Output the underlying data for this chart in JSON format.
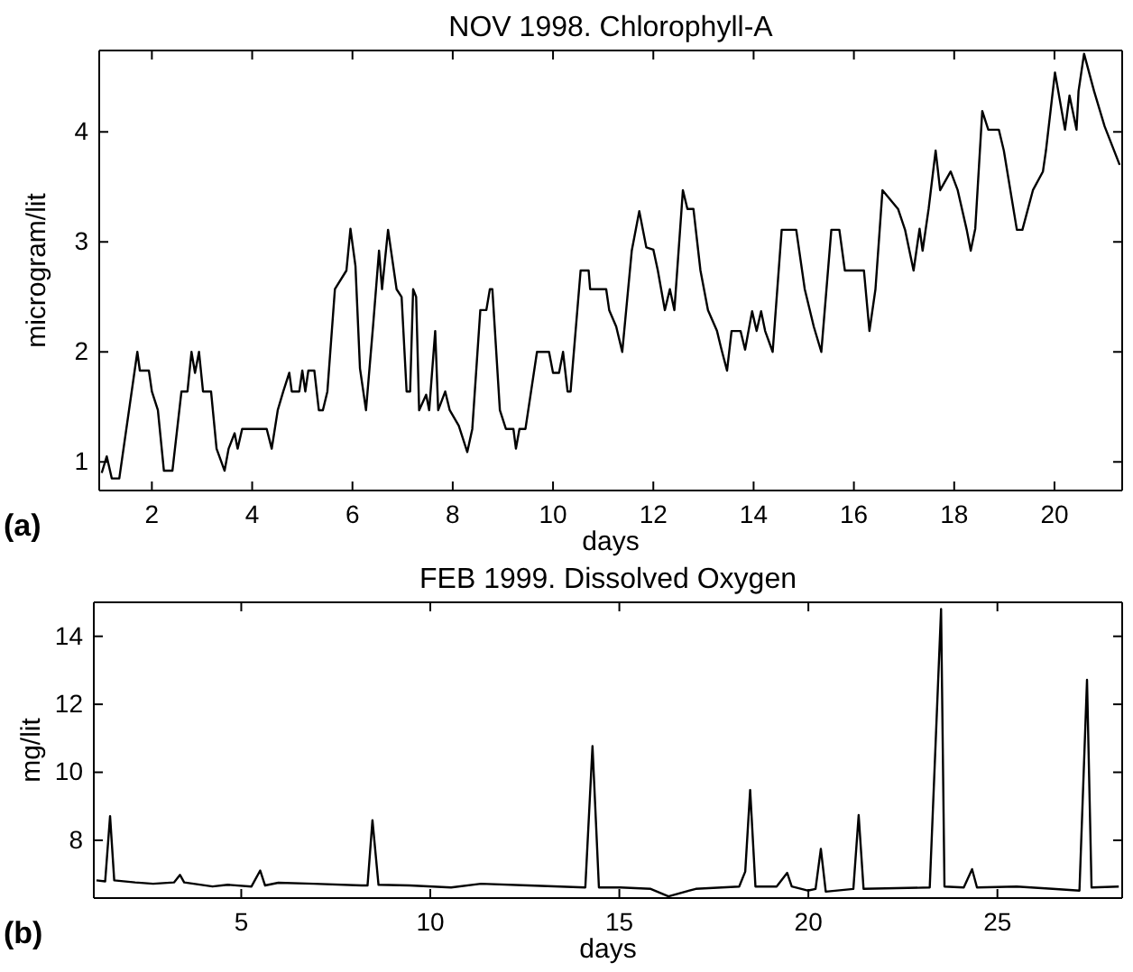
{
  "chart_data": [
    {
      "type": "line",
      "title": "NOV 1998. Chlorophyll-A",
      "xlabel": "days",
      "ylabel": "microgram/lit",
      "annotations": [
        "(a)"
      ],
      "xlim": [
        0.95,
        21.35
      ],
      "xticks": [
        2,
        4,
        6,
        8,
        10,
        12,
        14,
        16,
        18,
        20
      ],
      "ylim": [
        0.74,
        4.74
      ],
      "yticks": [
        1,
        2,
        3,
        4
      ],
      "grid": false,
      "marker": "none",
      "line_style": "solid",
      "series": [
        {
          "color": "#000000",
          "x": [
            1.0,
            1.1,
            1.2,
            1.35,
            1.71,
            1.76,
            1.94,
            2.0,
            2.12,
            2.24,
            2.41,
            2.59,
            2.71,
            2.79,
            2.86,
            2.94,
            3.02,
            3.18,
            3.29,
            3.45,
            3.53,
            3.65,
            3.71,
            3.8,
            4.29,
            4.39,
            4.51,
            4.62,
            4.74,
            4.79,
            4.94,
            5.0,
            5.06,
            5.12,
            5.24,
            5.33,
            5.41,
            5.5,
            5.65,
            5.88,
            5.96,
            6.06,
            6.15,
            6.27,
            6.41,
            6.53,
            6.59,
            6.71,
            6.88,
            6.98,
            7.08,
            7.15,
            7.21,
            7.27,
            7.33,
            7.47,
            7.53,
            7.65,
            7.71,
            7.85,
            7.94,
            8.12,
            8.29,
            8.39,
            8.55,
            8.67,
            8.74,
            8.79,
            8.94,
            9.06,
            9.21,
            9.26,
            9.33,
            9.45,
            9.68,
            9.92,
            10.0,
            10.12,
            10.2,
            10.29,
            10.35,
            10.55,
            10.71,
            10.74,
            11.06,
            11.12,
            11.26,
            11.38,
            11.57,
            11.72,
            11.86,
            12.0,
            12.09,
            12.23,
            12.33,
            12.42,
            12.59,
            12.68,
            12.8,
            12.94,
            13.09,
            13.27,
            13.36,
            13.47,
            13.56,
            13.74,
            13.83,
            13.97,
            14.06,
            14.15,
            14.23,
            14.38,
            14.56,
            14.67,
            14.85,
            15.02,
            15.2,
            15.35,
            15.55,
            15.71,
            15.82,
            16.2,
            16.31,
            16.43,
            16.57,
            16.88,
            17.02,
            17.19,
            17.31,
            17.37,
            17.49,
            17.63,
            17.72,
            17.93,
            18.07,
            18.25,
            18.33,
            18.42,
            18.56,
            18.68,
            18.89,
            18.99,
            19.25,
            19.36,
            19.57,
            19.77,
            19.83,
            20.01,
            20.21,
            20.3,
            20.44,
            20.48,
            20.59,
            20.79,
            21.0,
            21.3
          ],
          "values": [
            0.9,
            1.05,
            0.85,
            0.85,
            2.0,
            1.83,
            1.83,
            1.64,
            1.47,
            0.92,
            0.92,
            1.64,
            1.64,
            2.0,
            1.81,
            2.0,
            1.64,
            1.64,
            1.12,
            0.92,
            1.12,
            1.26,
            1.12,
            1.3,
            1.3,
            1.12,
            1.47,
            1.64,
            1.81,
            1.64,
            1.64,
            1.83,
            1.64,
            1.83,
            1.83,
            1.47,
            1.47,
            1.64,
            2.57,
            2.74,
            3.12,
            2.78,
            1.85,
            1.47,
            2.23,
            2.92,
            2.57,
            3.11,
            2.57,
            2.5,
            1.64,
            1.64,
            2.57,
            2.5,
            1.47,
            1.61,
            1.47,
            2.19,
            1.47,
            1.64,
            1.47,
            1.33,
            1.09,
            1.3,
            2.38,
            2.38,
            2.57,
            2.57,
            1.47,
            1.3,
            1.3,
            1.12,
            1.3,
            1.3,
            2.0,
            2.0,
            1.81,
            1.81,
            2.0,
            1.64,
            1.64,
            2.74,
            2.74,
            2.57,
            2.57,
            2.38,
            2.23,
            2.0,
            2.92,
            3.28,
            2.95,
            2.93,
            2.74,
            2.38,
            2.57,
            2.38,
            3.47,
            3.3,
            3.3,
            2.74,
            2.38,
            2.19,
            2.02,
            1.83,
            2.19,
            2.19,
            2.02,
            2.37,
            2.19,
            2.37,
            2.19,
            2.0,
            3.11,
            3.11,
            3.11,
            2.57,
            2.23,
            2.0,
            3.11,
            3.11,
            2.74,
            2.74,
            2.19,
            2.57,
            3.47,
            3.3,
            3.11,
            2.74,
            3.12,
            2.92,
            3.3,
            3.83,
            3.47,
            3.64,
            3.47,
            3.11,
            2.92,
            3.12,
            4.19,
            4.02,
            4.02,
            3.83,
            3.11,
            3.11,
            3.47,
            3.64,
            3.83,
            4.54,
            4.02,
            4.33,
            4.02,
            4.37,
            4.71,
            4.37,
            4.05,
            3.7
          ]
        }
      ]
    },
    {
      "type": "line",
      "title": "FEB 1999. Dissolved Oxygen",
      "xlabel": "days",
      "ylabel": "mg/lit",
      "annotations": [
        "(b)"
      ],
      "xlim": [
        1.1,
        28.3
      ],
      "xticks": [
        5,
        10,
        15,
        20,
        25
      ],
      "ylim": [
        6.3,
        15
      ],
      "yticks": [
        8,
        10,
        12,
        14
      ],
      "grid": false,
      "marker": "none",
      "line_style": "solid",
      "series": [
        {
          "color": "#000000",
          "x": [
            1.17,
            1.4,
            1.53,
            1.64,
            2.19,
            2.67,
            3.22,
            3.38,
            3.49,
            4.24,
            4.64,
            5.27,
            5.5,
            5.63,
            5.98,
            6.92,
            8.19,
            8.34,
            8.47,
            8.63,
            9.45,
            10.55,
            11.34,
            12.6,
            14.1,
            14.29,
            14.46,
            15.03,
            15.83,
            16.3,
            17.02,
            18.17,
            18.33,
            18.46,
            18.6,
            19.16,
            19.44,
            19.56,
            19.98,
            20.19,
            20.33,
            20.46,
            21.19,
            21.33,
            21.46,
            23.21,
            23.51,
            23.6,
            24.11,
            24.33,
            24.46,
            25.51,
            26.46,
            27.17,
            27.37,
            27.49,
            28.21
          ],
          "values": [
            6.82,
            6.79,
            8.71,
            6.82,
            6.76,
            6.72,
            6.76,
            6.98,
            6.76,
            6.64,
            6.69,
            6.64,
            7.11,
            6.67,
            6.75,
            6.72,
            6.67,
            6.67,
            8.59,
            6.69,
            6.67,
            6.61,
            6.72,
            6.67,
            6.61,
            10.77,
            6.61,
            6.61,
            6.57,
            6.35,
            6.57,
            6.64,
            7.08,
            9.48,
            6.64,
            6.64,
            7.04,
            6.64,
            6.52,
            6.57,
            7.75,
            6.49,
            6.57,
            8.74,
            6.57,
            6.61,
            14.8,
            6.64,
            6.61,
            7.15,
            6.61,
            6.64,
            6.57,
            6.52,
            12.72,
            6.61,
            6.64
          ]
        }
      ]
    }
  ]
}
